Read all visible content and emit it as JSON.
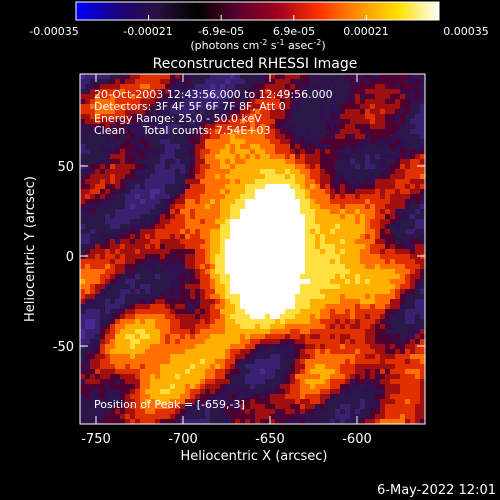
{
  "colorbar": {
    "ticks": [
      "-0.00035",
      "-0.00021",
      "-6.9e-05",
      "6.9e-05",
      "0.00021",
      "0.00035"
    ],
    "units_main": "(photons cm",
    "units_sup1": "-2",
    "units_mid1": " s",
    "units_sup2": "-1",
    "units_mid2": " asec",
    "units_sup3": "-2",
    "units_end": ")",
    "gradient": [
      "#0000ff",
      "#1a0080",
      "#2a1040",
      "#000000",
      "#5a0030",
      "#a00020",
      "#ff3000",
      "#ff9000",
      "#ffe000",
      "#ffffff"
    ]
  },
  "title": "Reconstructed RHESSI Image",
  "annotations": {
    "line1": "20-Oct-2003 12:43:56.000 to 12:49:56.000",
    "line2": "Detectors: 3F 4F 5F 6F 7F 8F, Att 0",
    "line3": "Energy Range: 25.0 - 50.0 keV",
    "line4": "Clean     Total counts: 7.54E+03",
    "peak": "Position of Peak = [-659,-3]"
  },
  "axes": {
    "xlabel": "Heliocentric X (arcsec)",
    "ylabel": "Heliocentric Y (arcsec)",
    "xticks": [
      "-750",
      "-700",
      "-650",
      "-600"
    ],
    "yticks": [
      "50",
      "0",
      "-50"
    ]
  },
  "footer": {
    "date": "6-May-2022 12:01"
  },
  "image_palette": [
    "#2a1848",
    "#3a2070",
    "#4a2a90",
    "#6030a0",
    "#301050",
    "#500030",
    "#a01010",
    "#e03000",
    "#ff7000",
    "#ffb000",
    "#ffe040",
    "#ffffff"
  ]
}
